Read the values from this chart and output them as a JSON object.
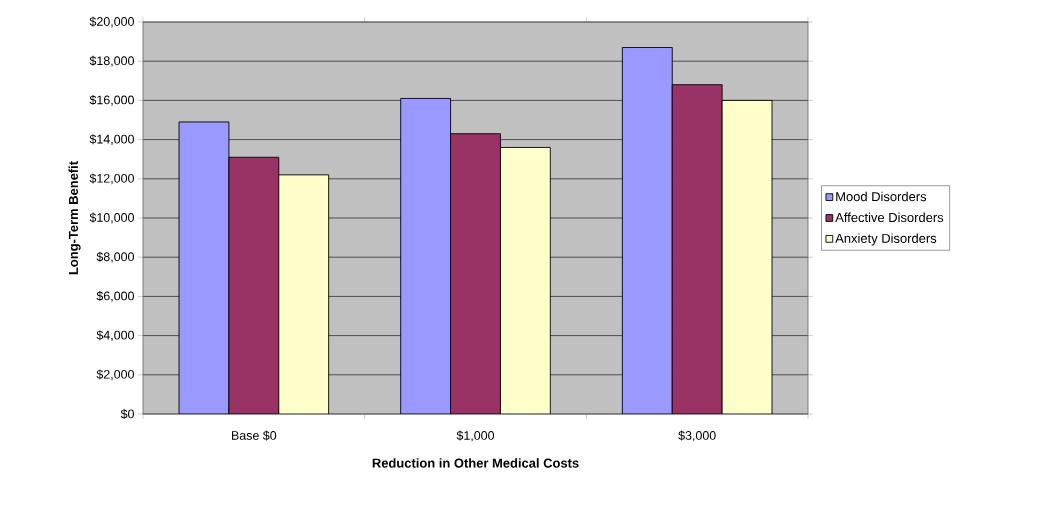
{
  "chart_data": {
    "type": "bar",
    "xlabel": "Reduction in Other Medical Costs",
    "ylabel": "Long-Term Benefit",
    "categories": [
      "Base  $0",
      "$1,000",
      "$3,000"
    ],
    "series": [
      {
        "name": "Mood Disorders",
        "color": "#9999ff",
        "values": [
          14900,
          16100,
          18700
        ]
      },
      {
        "name": "Affective Disorders",
        "color": "#993366",
        "values": [
          13100,
          14300,
          16800
        ]
      },
      {
        "name": "Anxiety Disorders",
        "color": "#ffffcc",
        "values": [
          12200,
          13600,
          16000
        ]
      }
    ],
    "ylim": [
      0,
      20000
    ],
    "yticks": [
      {
        "value": 0,
        "label": "$0"
      },
      {
        "value": 2000,
        "label": "$2,000"
      },
      {
        "value": 4000,
        "label": "$4,000"
      },
      {
        "value": 6000,
        "label": "$6,000"
      },
      {
        "value": 8000,
        "label": "$8,000"
      },
      {
        "value": 10000,
        "label": "$10,000"
      },
      {
        "value": 12000,
        "label": "$12,000"
      },
      {
        "value": 14000,
        "label": "$14,000"
      },
      {
        "value": 16000,
        "label": "$16,000"
      },
      {
        "value": 18000,
        "label": "$18,000"
      },
      {
        "value": 20000,
        "label": "$20,000"
      }
    ],
    "grid": "y",
    "legend": "right"
  }
}
